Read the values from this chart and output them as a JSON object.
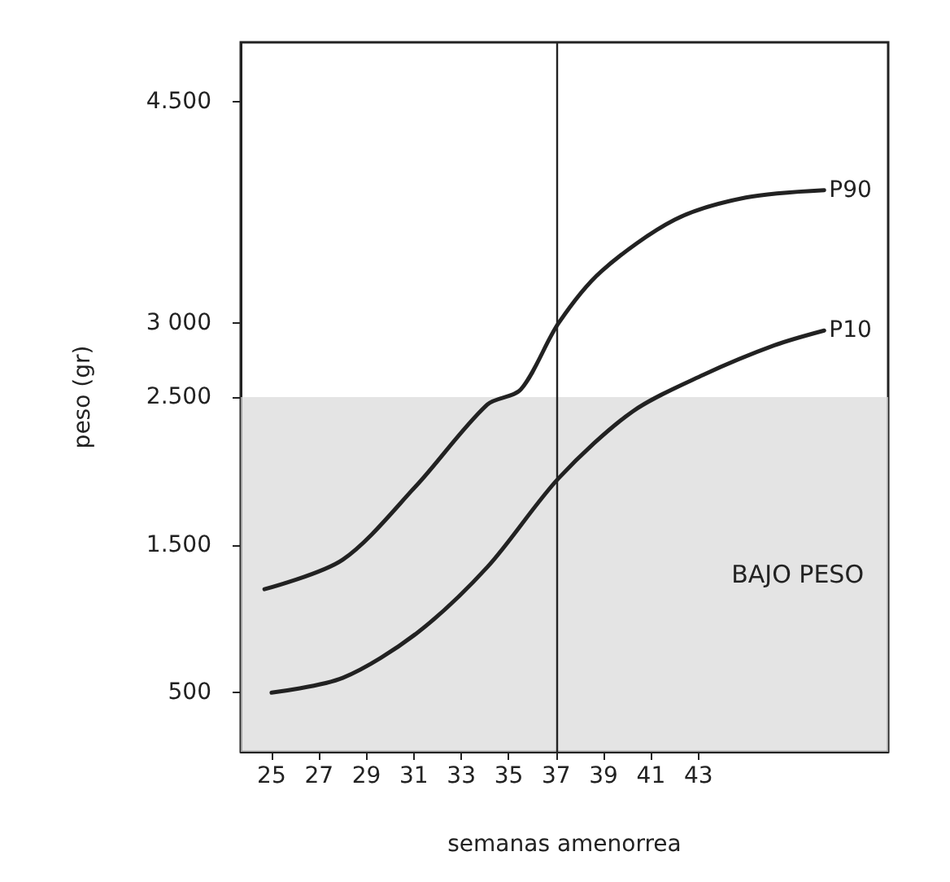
{
  "chart_data": {
    "type": "line",
    "xlabel": "semanas amenorrea",
    "ylabel": "peso (gr)",
    "series": [
      {
        "name": "P90",
        "color": "#222222",
        "x": [
          24.7,
          28,
          31.1,
          34.1,
          35.5,
          37.1,
          38.9,
          42,
          45,
          48.3
        ],
        "values": [
          1200,
          1400,
          1900,
          2450,
          2550,
          3000,
          3350,
          3700,
          3850,
          3900
        ]
      },
      {
        "name": "P10",
        "color": "#222222",
        "x": [
          25,
          28,
          31.1,
          34.1,
          37.1,
          40.2,
          43.2,
          46.2,
          48.3
        ],
        "values": [
          500,
          600,
          900,
          1350,
          1950,
          2400,
          2650,
          2850,
          2950
        ]
      }
    ],
    "xlim": [
      23.7,
      51
    ],
    "xticks": [
      25,
      27,
      29,
      31,
      33,
      35,
      37,
      39,
      41,
      43
    ],
    "ylim": [
      100,
      4900
    ],
    "yticks": [
      500,
      {
        "value": 1500,
        "label": "1.500"
      },
      {
        "value": 2500,
        "label": "2.500"
      },
      {
        "value": 3000,
        "label": "3 000"
      },
      {
        "value": 4500,
        "label": "4.500"
      }
    ],
    "ref_lines": [
      {
        "axis": "x",
        "value": 37,
        "label": null,
        "color": "#222222"
      }
    ],
    "bands": [
      {
        "axis": "y",
        "from": 100,
        "to": 2500,
        "label": "BAJO PESO",
        "color": "#d8d8d8"
      }
    ],
    "grid": false,
    "legend": false,
    "marker": "none",
    "line_style": "solid"
  }
}
